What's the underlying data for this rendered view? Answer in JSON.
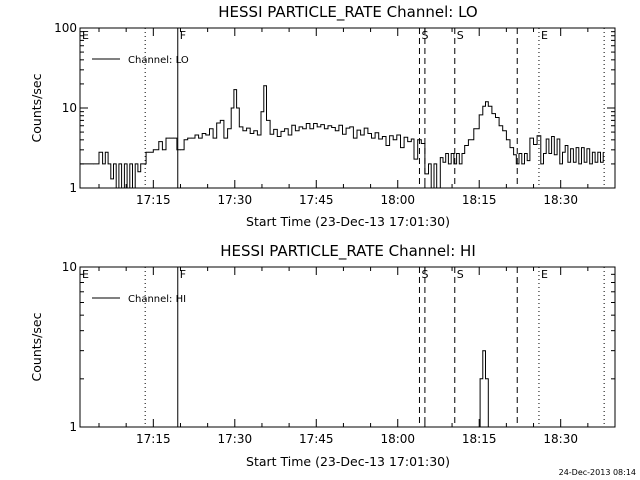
{
  "footer_timestamp": "24-Dec-2013 08:14",
  "chart_data": [
    {
      "type": "line",
      "title": "HESSI PARTICLE_RATE Channel: LO",
      "xlabel": "Start Time (23-Dec-13 17:01:30)",
      "ylabel": "Counts/sec",
      "yscale": "log",
      "ylim": [
        1,
        100
      ],
      "xlim": [
        "17:01:30",
        "18:40:00"
      ],
      "x_ticks": [
        "17:15",
        "17:30",
        "17:45",
        "18:00",
        "18:15",
        "18:30"
      ],
      "y_ticks": [
        "1",
        "10",
        "100"
      ],
      "legend": {
        "label": "Channel: LO",
        "position": "top-left"
      },
      "event_markers": [
        {
          "label": "E",
          "time": "17:01:30",
          "style": "none"
        },
        {
          "label": "",
          "time": "17:13:30",
          "style": "dotted"
        },
        {
          "label": "F",
          "time": "17:19:30",
          "style": "solid"
        },
        {
          "label": "S",
          "time": "18:04:00",
          "style": "dashed"
        },
        {
          "label": "",
          "time": "18:05:00",
          "style": "dashed"
        },
        {
          "label": "S",
          "time": "18:10:30",
          "style": "dashed"
        },
        {
          "label": "",
          "time": "18:22:00",
          "style": "dashed"
        },
        {
          "label": "E",
          "time": "18:26:00",
          "style": "dotted"
        },
        {
          "label": "",
          "time": "18:38:00",
          "style": "dotted"
        }
      ],
      "series": [
        {
          "name": "Channel: LO",
          "points": [
            [
              "17:01:30",
              2
            ],
            [
              "17:04:00",
              2
            ],
            [
              "17:05:00",
              2.8
            ],
            [
              "17:05:40",
              2
            ],
            [
              "17:06:10",
              2.8
            ],
            [
              "17:06:40",
              2
            ],
            [
              "17:07:10",
              1.3
            ],
            [
              "17:07:40",
              2
            ],
            [
              "17:08:10",
              1
            ],
            [
              "17:08:40",
              2
            ],
            [
              "17:09:10",
              1
            ],
            [
              "17:09:40",
              2
            ],
            [
              "17:10:10",
              1
            ],
            [
              "17:10:40",
              2
            ],
            [
              "17:11:10",
              1
            ],
            [
              "17:11:40",
              2
            ],
            [
              "17:12:10",
              1.6
            ],
            [
              "17:12:40",
              2
            ],
            [
              "17:13:10",
              2
            ],
            [
              "17:13:40",
              2.8
            ],
            [
              "17:14:10",
              2.8
            ],
            [
              "17:15:00",
              3
            ],
            [
              "17:16:00",
              3.8
            ],
            [
              "17:16:40",
              3
            ],
            [
              "17:17:20",
              4.2
            ],
            [
              "17:18:00",
              4.2
            ],
            [
              "17:18:40",
              4.2
            ],
            [
              "17:19:20",
              3
            ],
            [
              "17:20:00",
              3
            ],
            [
              "17:20:40",
              4
            ],
            [
              "17:21:20",
              4.2
            ],
            [
              "17:22:00",
              4.2
            ],
            [
              "17:22:40",
              4.6
            ],
            [
              "17:23:20",
              4.2
            ],
            [
              "17:24:00",
              4.8
            ],
            [
              "17:24:40",
              4.6
            ],
            [
              "17:25:20",
              5.5
            ],
            [
              "17:26:00",
              4.2
            ],
            [
              "17:26:40",
              6.5
            ],
            [
              "17:27:20",
              7
            ],
            [
              "17:28:00",
              4.2
            ],
            [
              "17:28:40",
              5.5
            ],
            [
              "17:29:20",
              10
            ],
            [
              "17:29:50",
              17
            ],
            [
              "17:30:20",
              10
            ],
            [
              "17:30:50",
              5.8
            ],
            [
              "17:31:30",
              5.2
            ],
            [
              "17:32:10",
              5.6
            ],
            [
              "17:32:50",
              4.8
            ],
            [
              "17:33:30",
              5.2
            ],
            [
              "17:34:10",
              4.6
            ],
            [
              "17:34:50",
              9
            ],
            [
              "17:35:20",
              19
            ],
            [
              "17:35:50",
              7
            ],
            [
              "17:36:30",
              4.7
            ],
            [
              "17:37:10",
              5.4
            ],
            [
              "17:37:50",
              4.4
            ],
            [
              "17:38:30",
              5.1
            ],
            [
              "17:39:10",
              5.5
            ],
            [
              "17:39:50",
              4.6
            ],
            [
              "17:40:30",
              6.1
            ],
            [
              "17:41:10",
              5.2
            ],
            [
              "17:41:50",
              5.8
            ],
            [
              "17:42:30",
              5.5
            ],
            [
              "17:43:10",
              6.4
            ],
            [
              "17:43:50",
              5.5
            ],
            [
              "17:44:30",
              6.4
            ],
            [
              "17:45:10",
              5.8
            ],
            [
              "17:45:50",
              6.2
            ],
            [
              "17:46:30",
              5.5
            ],
            [
              "17:47:10",
              6
            ],
            [
              "17:47:50",
              5.7
            ],
            [
              "17:48:30",
              5.2
            ],
            [
              "17:49:10",
              6.1
            ],
            [
              "17:49:50",
              4.7
            ],
            [
              "17:50:30",
              5.6
            ],
            [
              "17:51:10",
              5.8
            ],
            [
              "17:51:50",
              4.2
            ],
            [
              "17:52:30",
              5.3
            ],
            [
              "17:53:10",
              4.6
            ],
            [
              "17:53:50",
              5.6
            ],
            [
              "17:54:30",
              4.8
            ],
            [
              "17:55:10",
              4.2
            ],
            [
              "17:55:50",
              4.9
            ],
            [
              "17:56:30",
              4.1
            ],
            [
              "17:57:10",
              4.4
            ],
            [
              "17:57:50",
              3.4
            ],
            [
              "17:58:30",
              4.5
            ],
            [
              "17:59:10",
              4
            ],
            [
              "17:59:50",
              4.6
            ],
            [
              "18:00:30",
              3.2
            ],
            [
              "18:01:10",
              4.3
            ],
            [
              "18:01:50",
              3.8
            ],
            [
              "18:02:30",
              4.1
            ],
            [
              "18:03:00",
              2.3
            ],
            [
              "18:03:40",
              4
            ],
            [
              "18:04:20",
              3.6
            ],
            [
              "18:05:00",
              1.5
            ],
            [
              "18:05:40",
              2
            ],
            [
              "18:06:10",
              1
            ],
            [
              "18:06:40",
              2
            ],
            [
              "18:07:10",
              1
            ],
            [
              "18:07:50",
              2.4
            ],
            [
              "18:08:20",
              2.1
            ],
            [
              "18:08:50",
              2.7
            ],
            [
              "18:09:20",
              2
            ],
            [
              "18:09:50",
              2.7
            ],
            [
              "18:10:20",
              2
            ],
            [
              "18:10:50",
              2.7
            ],
            [
              "18:11:20",
              2
            ],
            [
              "18:11:50",
              2.7
            ],
            [
              "18:12:20",
              3.4
            ],
            [
              "18:13:00",
              4
            ],
            [
              "18:14:00",
              5.5
            ],
            [
              "18:15:00",
              8.2
            ],
            [
              "18:15:40",
              10.5
            ],
            [
              "18:16:10",
              12
            ],
            [
              "18:16:40",
              10.5
            ],
            [
              "18:17:20",
              8.5
            ],
            [
              "18:18:00",
              7.6
            ],
            [
              "18:18:40",
              6
            ],
            [
              "18:19:20",
              5.2
            ],
            [
              "18:20:00",
              4
            ],
            [
              "18:20:40",
              3.2
            ],
            [
              "18:21:20",
              2.6
            ],
            [
              "18:21:50",
              2
            ],
            [
              "18:22:20",
              2.7
            ],
            [
              "18:22:50",
              2
            ],
            [
              "18:23:20",
              2.7
            ],
            [
              "18:23:50",
              2.2
            ],
            [
              "18:24:20",
              4.2
            ],
            [
              "18:25:00",
              3.5
            ],
            [
              "18:25:40",
              4.5
            ],
            [
              "18:26:20",
              2
            ],
            [
              "18:26:50",
              2.7
            ],
            [
              "18:27:20",
              4.1
            ],
            [
              "18:27:50",
              2.7
            ],
            [
              "18:28:20",
              4.4
            ],
            [
              "18:28:50",
              2.6
            ],
            [
              "18:29:20",
              4.1
            ],
            [
              "18:29:50",
              2
            ],
            [
              "18:30:20",
              2.8
            ],
            [
              "18:30:50",
              3.4
            ],
            [
              "18:31:20",
              2.1
            ],
            [
              "18:31:50",
              3.1
            ],
            [
              "18:32:20",
              2.1
            ],
            [
              "18:32:50",
              3.2
            ],
            [
              "18:33:20",
              2
            ],
            [
              "18:33:50",
              3.2
            ],
            [
              "18:34:20",
              2.1
            ],
            [
              "18:34:50",
              3.1
            ],
            [
              "18:35:20",
              2
            ],
            [
              "18:35:50",
              2.8
            ],
            [
              "18:36:20",
              2.1
            ],
            [
              "18:36:50",
              2.8
            ],
            [
              "18:37:20",
              2.1
            ],
            [
              "18:37:50",
              2.8
            ]
          ]
        }
      ]
    },
    {
      "type": "line",
      "title": "HESSI PARTICLE_RATE Channel: HI",
      "xlabel": "Start Time (23-Dec-13 17:01:30)",
      "ylabel": "Counts/sec",
      "yscale": "log",
      "ylim": [
        1,
        10
      ],
      "xlim": [
        "17:01:30",
        "18:40:00"
      ],
      "x_ticks": [
        "17:15",
        "17:30",
        "17:45",
        "18:00",
        "18:15",
        "18:30"
      ],
      "y_ticks": [
        "1",
        "10"
      ],
      "legend": {
        "label": "Channel: HI",
        "position": "top-left"
      },
      "event_markers": [
        {
          "label": "E",
          "time": "17:01:30",
          "style": "none"
        },
        {
          "label": "",
          "time": "17:13:30",
          "style": "dotted"
        },
        {
          "label": "F",
          "time": "17:19:30",
          "style": "solid"
        },
        {
          "label": "S",
          "time": "18:04:00",
          "style": "dashed"
        },
        {
          "label": "",
          "time": "18:05:00",
          "style": "dashed"
        },
        {
          "label": "S",
          "time": "18:10:30",
          "style": "dashed"
        },
        {
          "label": "",
          "time": "18:22:00",
          "style": "dashed"
        },
        {
          "label": "E",
          "time": "18:26:00",
          "style": "dotted"
        },
        {
          "label": "",
          "time": "18:38:00",
          "style": "dotted"
        }
      ],
      "series": [
        {
          "name": "Channel: HI",
          "points": [
            [
              "18:14:40",
              1
            ],
            [
              "18:15:10",
              2
            ],
            [
              "18:15:40",
              3
            ],
            [
              "18:16:10",
              2
            ],
            [
              "18:16:40",
              1
            ]
          ]
        }
      ]
    }
  ]
}
